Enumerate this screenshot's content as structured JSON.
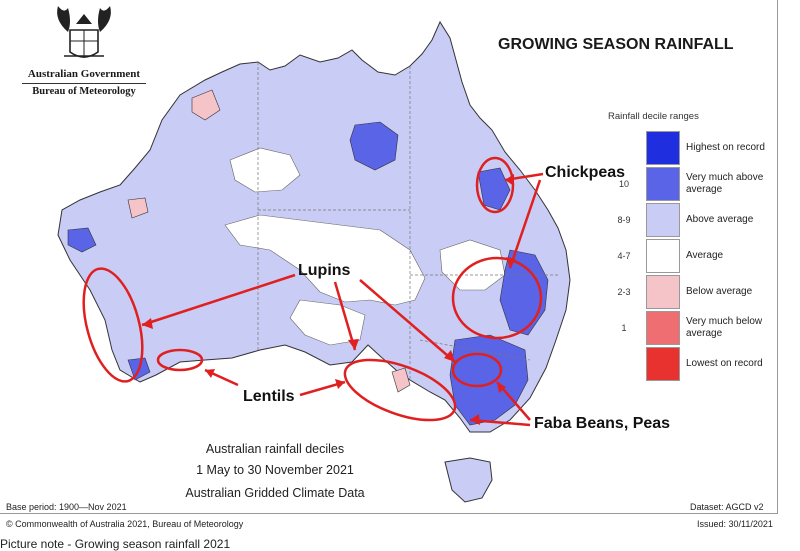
{
  "header": {
    "title": "GROWING SEASON RAINFALL",
    "gov_name": "Australian Government",
    "bureau_name": "Bureau of Meteorology"
  },
  "legend": {
    "title": "Rainfall decile ranges",
    "items": [
      {
        "code": "",
        "label": "Highest on record",
        "color": "#1f2fe0"
      },
      {
        "code": "10",
        "label": "Very much above average",
        "color": "#5a64e6"
      },
      {
        "code": "8-9",
        "label": "Above average",
        "color": "#c9ccf4"
      },
      {
        "code": "4-7",
        "label": "Average",
        "color": "#ffffff"
      },
      {
        "code": "2-3",
        "label": "Below average",
        "color": "#f5c4c8"
      },
      {
        "code": "1",
        "label": "Very much below average",
        "color": "#ee6e72"
      },
      {
        "code": "",
        "label": "Lowest on record",
        "color": "#e8322f"
      }
    ]
  },
  "caption": {
    "line1": "Australian rainfall deciles",
    "line2": "1 May to 30 November 2021",
    "line3": "Australian Gridded Climate Data"
  },
  "footer": {
    "base_period": "Base period: 1900—Nov 2021",
    "dataset": "Dataset: AGCD v2",
    "copyright": "© Commonwealth of Australia 2021, Bureau of Meteorology",
    "issued": "Issued: 30/11/2021"
  },
  "annotations": {
    "chickpeas": "Chickpeas",
    "lupins": "Lupins",
    "lentils": "Lentils",
    "faba": "Faba Beans, Peas",
    "color": "#e02020"
  },
  "picture_note": "Picture note - Growing season rainfall 2021"
}
